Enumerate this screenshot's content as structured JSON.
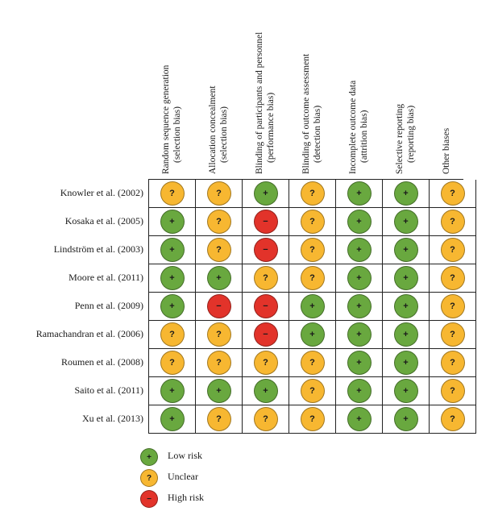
{
  "domains": [
    {
      "line1": "Random sequence generation",
      "line2": "(selection bias)"
    },
    {
      "line1": "Allocation concealment",
      "line2": "(selection bias)"
    },
    {
      "line1": "Blinding of participants and personnel",
      "line2": "(performance bias)"
    },
    {
      "line1": "Blinding of outcome assessment",
      "line2": "(detection bias)"
    },
    {
      "line1": "Incomplete outcome data",
      "line2": "(attrition bias)"
    },
    {
      "line1": "Selective reporting",
      "line2": "(reporting bias)"
    },
    {
      "line1": "Other biases",
      "line2": ""
    }
  ],
  "studies": [
    {
      "name": "Knowler et al. (2002)",
      "ratings": [
        "unclear",
        "unclear",
        "low",
        "unclear",
        "low",
        "low",
        "unclear"
      ]
    },
    {
      "name": "Kosaka et al. (2005)",
      "ratings": [
        "low",
        "unclear",
        "high",
        "unclear",
        "low",
        "low",
        "unclear"
      ]
    },
    {
      "name": "Lindström et al. (2003)",
      "ratings": [
        "low",
        "unclear",
        "high",
        "unclear",
        "low",
        "low",
        "unclear"
      ]
    },
    {
      "name": "Moore et al. (2011)",
      "ratings": [
        "low",
        "low",
        "unclear",
        "unclear",
        "low",
        "low",
        "unclear"
      ]
    },
    {
      "name": "Penn et al. (2009)",
      "ratings": [
        "low",
        "high",
        "high",
        "low",
        "low",
        "low",
        "unclear"
      ]
    },
    {
      "name": "Ramachandran et al. (2006)",
      "ratings": [
        "unclear",
        "unclear",
        "high",
        "low",
        "low",
        "low",
        "unclear"
      ]
    },
    {
      "name": "Roumen et al. (2008)",
      "ratings": [
        "unclear",
        "unclear",
        "unclear",
        "unclear",
        "low",
        "low",
        "unclear"
      ]
    },
    {
      "name": "Saito et al. (2011)",
      "ratings": [
        "low",
        "low",
        "low",
        "unclear",
        "low",
        "low",
        "unclear"
      ]
    },
    {
      "name": "Xu et al. (2013)",
      "ratings": [
        "low",
        "unclear",
        "unclear",
        "unclear",
        "low",
        "low",
        "unclear"
      ]
    }
  ],
  "symbols": {
    "low": "+",
    "unclear": "?",
    "high": "−"
  },
  "colors": {
    "low": "#69a83f",
    "unclear": "#f7b731",
    "high": "#e2332a"
  },
  "legend": [
    {
      "key": "low",
      "label": "Low risk"
    },
    {
      "key": "unclear",
      "label": "Unclear"
    },
    {
      "key": "high",
      "label": "High risk"
    }
  ]
}
